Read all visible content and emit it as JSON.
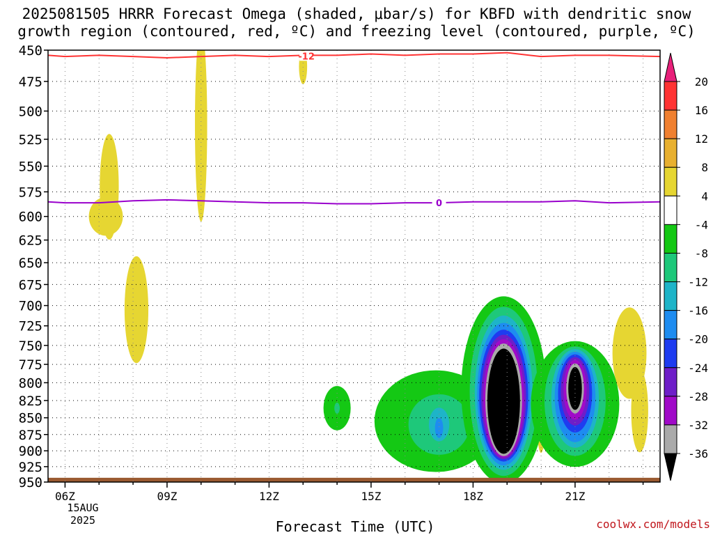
{
  "title_line1": "2025081505 HRRR Forecast Omega (shaded, μbar/s) for KBFD with dendritic snow",
  "title_line2": "growth region (contoured, red, ºC) and freezing level (contoured, purple, ºC)",
  "credit": "coolwx.com/models",
  "chart_data": {
    "type": "heatmap",
    "xlabel": "Forecast Time (UTC)",
    "x_ticks": [
      {
        "hour": 6,
        "label": "06Z"
      },
      {
        "hour": 9,
        "label": "09Z"
      },
      {
        "hour": 12,
        "label": "12Z"
      },
      {
        "hour": 15,
        "label": "15Z"
      },
      {
        "hour": 18,
        "label": "18Z"
      },
      {
        "hour": 21,
        "label": "21Z"
      }
    ],
    "x_sub_labels": [
      "15AUG",
      "2025"
    ],
    "xlim": [
      5.5,
      23.5
    ],
    "y_ticks": [
      450,
      475,
      500,
      525,
      550,
      575,
      600,
      625,
      650,
      675,
      700,
      725,
      750,
      775,
      800,
      825,
      850,
      875,
      900,
      925,
      950
    ],
    "ylim": [
      450,
      950
    ],
    "y_scale": "log-pressure",
    "grid": true,
    "colorbar": {
      "labels": [
        "20",
        "16",
        "12",
        "8",
        "4",
        "-4",
        "-8",
        "-12",
        "-16",
        "-20",
        "-24",
        "-28",
        "-32",
        "-36"
      ],
      "bins": [
        {
          "lo": 16,
          "hi": 20,
          "color": "#ff3333"
        },
        {
          "lo": 12,
          "hi": 16,
          "color": "#f08030"
        },
        {
          "lo": 8,
          "hi": 12,
          "color": "#e8b030"
        },
        {
          "lo": 4,
          "hi": 8,
          "color": "#e6d632"
        },
        {
          "lo": -4,
          "hi": 4,
          "color": "#ffffff"
        },
        {
          "lo": -8,
          "hi": -4,
          "color": "#14c814"
        },
        {
          "lo": -12,
          "hi": -8,
          "color": "#1ec87a"
        },
        {
          "lo": -16,
          "hi": -12,
          "color": "#1eb4c8"
        },
        {
          "lo": -20,
          "hi": -16,
          "color": "#1e8cf0"
        },
        {
          "lo": -24,
          "hi": -20,
          "color": "#1e3cf0"
        },
        {
          "lo": -28,
          "hi": -24,
          "color": "#6e1ec8"
        },
        {
          "lo": -32,
          "hi": -28,
          "color": "#a00ac8"
        },
        {
          "lo": -36,
          "hi": -32,
          "color": "#aaaaaa"
        }
      ],
      "top_arrow_color": "#e8207a",
      "bottom_arrow_color": "#000000"
    },
    "contours": [
      {
        "label": "-12",
        "color": "#ff3333",
        "points": [
          [
            5.5,
            454
          ],
          [
            6,
            455
          ],
          [
            7,
            454
          ],
          [
            8,
            455
          ],
          [
            9,
            456
          ],
          [
            10,
            455
          ],
          [
            11,
            454
          ],
          [
            12,
            455
          ],
          [
            13,
            454
          ],
          [
            14,
            454
          ],
          [
            15,
            453
          ],
          [
            16,
            454
          ],
          [
            17,
            453
          ],
          [
            18,
            453
          ],
          [
            19,
            452
          ],
          [
            20,
            455
          ],
          [
            21,
            454
          ],
          [
            22,
            454
          ],
          [
            23.5,
            455
          ]
        ]
      },
      {
        "label": "0",
        "color": "#9900cc",
        "points": [
          [
            5.5,
            585
          ],
          [
            6,
            586
          ],
          [
            7,
            586
          ],
          [
            8,
            584
          ],
          [
            9,
            583
          ],
          [
            10,
            584
          ],
          [
            11,
            585
          ],
          [
            12,
            586
          ],
          [
            13,
            586
          ],
          [
            14,
            587
          ],
          [
            15,
            587
          ],
          [
            16,
            586
          ],
          [
            17,
            586
          ],
          [
            18,
            585
          ],
          [
            19,
            585
          ],
          [
            20,
            585
          ],
          [
            21,
            584
          ],
          [
            22,
            586
          ],
          [
            23.5,
            585
          ]
        ]
      }
    ],
    "ground": {
      "from": 943,
      "to": 950,
      "color": "#9a5a30"
    },
    "omega_features": [
      {
        "x": 10,
        "p": 512,
        "rx": 0.18,
        "ry": 85,
        "value": 5
      },
      {
        "x": 13,
        "p": 463,
        "rx": 0.12,
        "ry": 14,
        "value": 5
      },
      {
        "x": 7.3,
        "p": 570,
        "rx": 0.28,
        "ry": 52,
        "value": 5
      },
      {
        "x": 7.2,
        "p": 600,
        "rx": 0.5,
        "ry": 20,
        "value": 5
      },
      {
        "x": 8.1,
        "p": 705,
        "rx": 0.35,
        "ry": 65,
        "value": 5
      },
      {
        "x": 22.6,
        "p": 760,
        "rx": 0.5,
        "ry": 60,
        "value": 5
      },
      {
        "x": 22.9,
        "p": 840,
        "rx": 0.25,
        "ry": 60,
        "value": 5
      },
      {
        "x": 20,
        "p": 830,
        "rx": 0.15,
        "ry": 70,
        "value": 5
      },
      {
        "x": 20,
        "p": 830,
        "rx": 0.09,
        "ry": 45,
        "value": 10
      },
      {
        "x": 20,
        "p": 830,
        "rx": 0.05,
        "ry": 30,
        "value": 14
      },
      {
        "x": 14,
        "p": 836,
        "rx": 0.4,
        "ry": 32,
        "value": -5
      },
      {
        "x": 14,
        "p": 836,
        "rx": 0.08,
        "ry": 8,
        "value": -10
      },
      {
        "x": 16.9,
        "p": 855,
        "rx": 1.8,
        "ry": 75,
        "value": -5
      },
      {
        "x": 17,
        "p": 860,
        "rx": 0.9,
        "ry": 45,
        "value": -10
      },
      {
        "x": 17,
        "p": 860,
        "rx": 0.3,
        "ry": 25,
        "value": -14
      },
      {
        "x": 17,
        "p": 865,
        "rx": 0.12,
        "ry": 15,
        "value": -18
      },
      {
        "x": 18.9,
        "p": 810,
        "rx": 1.25,
        "ry": 130,
        "value": -5
      },
      {
        "x": 18.9,
        "p": 812,
        "rx": 1.0,
        "ry": 118,
        "value": -10
      },
      {
        "x": 18.9,
        "p": 814,
        "rx": 0.85,
        "ry": 108,
        "value": -14
      },
      {
        "x": 18.9,
        "p": 816,
        "rx": 0.78,
        "ry": 100,
        "value": -18
      },
      {
        "x": 18.9,
        "p": 818,
        "rx": 0.72,
        "ry": 93,
        "value": -22
      },
      {
        "x": 18.9,
        "p": 820,
        "rx": 0.66,
        "ry": 88,
        "value": -26
      },
      {
        "x": 18.9,
        "p": 822,
        "rx": 0.6,
        "ry": 84,
        "value": -30
      },
      {
        "x": 18.9,
        "p": 824,
        "rx": 0.54,
        "ry": 80,
        "value": -34
      },
      {
        "x": 18.9,
        "p": 826,
        "rx": 0.48,
        "ry": 75,
        "value": -38
      },
      {
        "x": 21,
        "p": 830,
        "rx": 1.3,
        "ry": 90,
        "value": -5
      },
      {
        "x": 21,
        "p": 826,
        "rx": 0.9,
        "ry": 78,
        "value": -10
      },
      {
        "x": 21,
        "p": 822,
        "rx": 0.7,
        "ry": 70,
        "value": -14
      },
      {
        "x": 21,
        "p": 820,
        "rx": 0.6,
        "ry": 64,
        "value": -18
      },
      {
        "x": 21,
        "p": 815,
        "rx": 0.5,
        "ry": 55,
        "value": -22
      },
      {
        "x": 21,
        "p": 812,
        "rx": 0.42,
        "ry": 48,
        "value": -26
      },
      {
        "x": 21,
        "p": 810,
        "rx": 0.34,
        "ry": 42,
        "value": -30
      },
      {
        "x": 21,
        "p": 808,
        "rx": 0.26,
        "ry": 35,
        "value": -34
      },
      {
        "x": 21,
        "p": 808,
        "rx": 0.2,
        "ry": 30,
        "value": -38
      }
    ]
  }
}
